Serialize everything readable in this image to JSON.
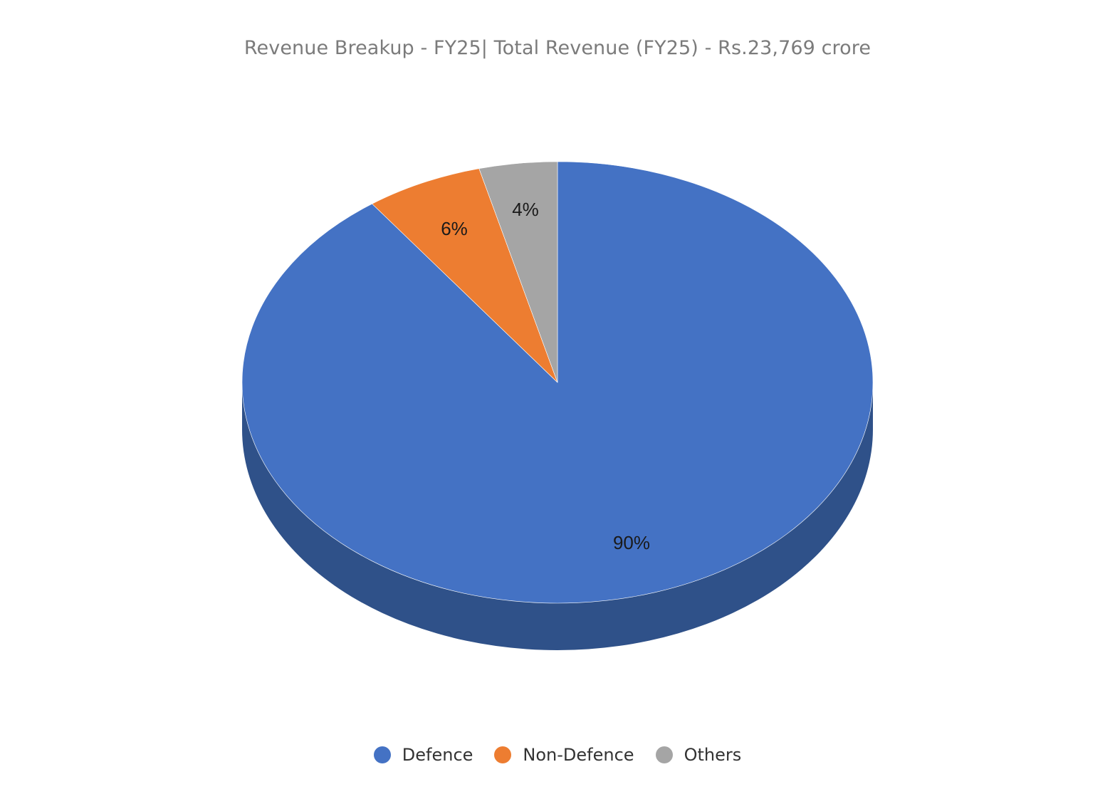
{
  "chart_data": {
    "type": "pie",
    "title": "Revenue Breakup - FY25| Total Revenue (FY25) - Rs.23,769 crore",
    "style": "3d",
    "categories": [
      "Defence",
      "Non-Defence",
      "Others"
    ],
    "values": [
      90,
      6,
      4
    ],
    "data_labels": [
      "90%",
      "6%",
      "4%"
    ],
    "colors": [
      "#4472c4",
      "#ed7d31",
      "#a5a5a5"
    ],
    "side_colors": [
      "#2f5189",
      "#b35d24",
      "#7c7c7c"
    ],
    "legend_position": "bottom"
  }
}
